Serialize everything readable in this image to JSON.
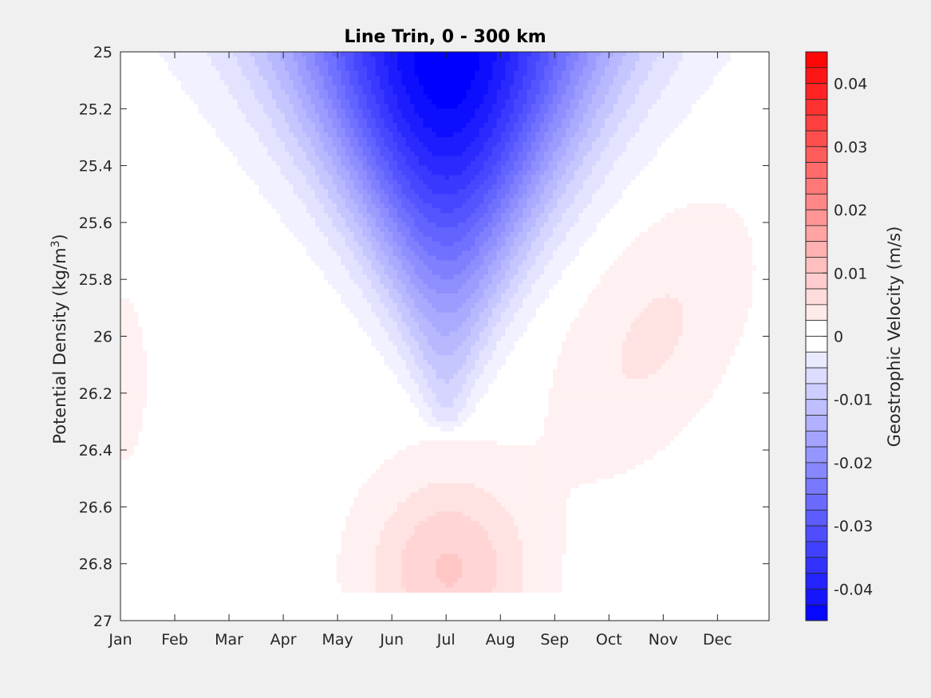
{
  "chart_data": {
    "type": "heatmap",
    "subtype": "filled-contour",
    "title": "Line Trin, 0 - 300 km",
    "xlabel": "",
    "ylabel": "Potential Density (kg/m³)",
    "ylabel_parts": {
      "main": "Potential Density (kg/m",
      "sup": "3",
      "close": ")"
    },
    "x_ticks": [
      "Jan",
      "Feb",
      "Mar",
      "Apr",
      "May",
      "Jun",
      "Jul",
      "Aug",
      "Sep",
      "Oct",
      "Nov",
      "Dec"
    ],
    "xlim": [
      1,
      12.95
    ],
    "ylim": [
      25,
      27
    ],
    "y_reversed": true,
    "y_ticks": [
      "25",
      "25.2",
      "25.4",
      "25.6",
      "25.8",
      "26",
      "26.2",
      "26.4",
      "26.6",
      "26.8",
      "27"
    ],
    "grid": false,
    "colorbar": {
      "label": "Geostrophic Velocity (m/s)",
      "range": [
        -0.045,
        0.045
      ],
      "step": 0.0025,
      "tick_labels": [
        "0.04",
        "0.03",
        "0.02",
        "0.01",
        "0",
        "-0.01",
        "-0.02",
        "-0.03",
        "-0.04"
      ],
      "tick_values": [
        0.04,
        0.03,
        0.02,
        0.01,
        0,
        -0.01,
        -0.02,
        -0.03,
        -0.04
      ],
      "colormap": "blue-white-red",
      "neg_color": "#0000ff",
      "zero_color": "#ffffff",
      "pos_color": "#ff0000"
    },
    "features": [
      {
        "name": "westward-jet-core",
        "month": 7.0,
        "density": 25.0,
        "value": -0.04
      },
      {
        "name": "eastward-subsurface-core",
        "month": 7.0,
        "density": 26.8,
        "value": 0.0075
      },
      {
        "name": "eastward-autumn-lobe",
        "month": 11.0,
        "density": 26.1,
        "value": 0.003
      }
    ]
  },
  "colors": {
    "background": "#f0f0f0",
    "plot_bg": "#ffffff",
    "axis": "#262626"
  }
}
